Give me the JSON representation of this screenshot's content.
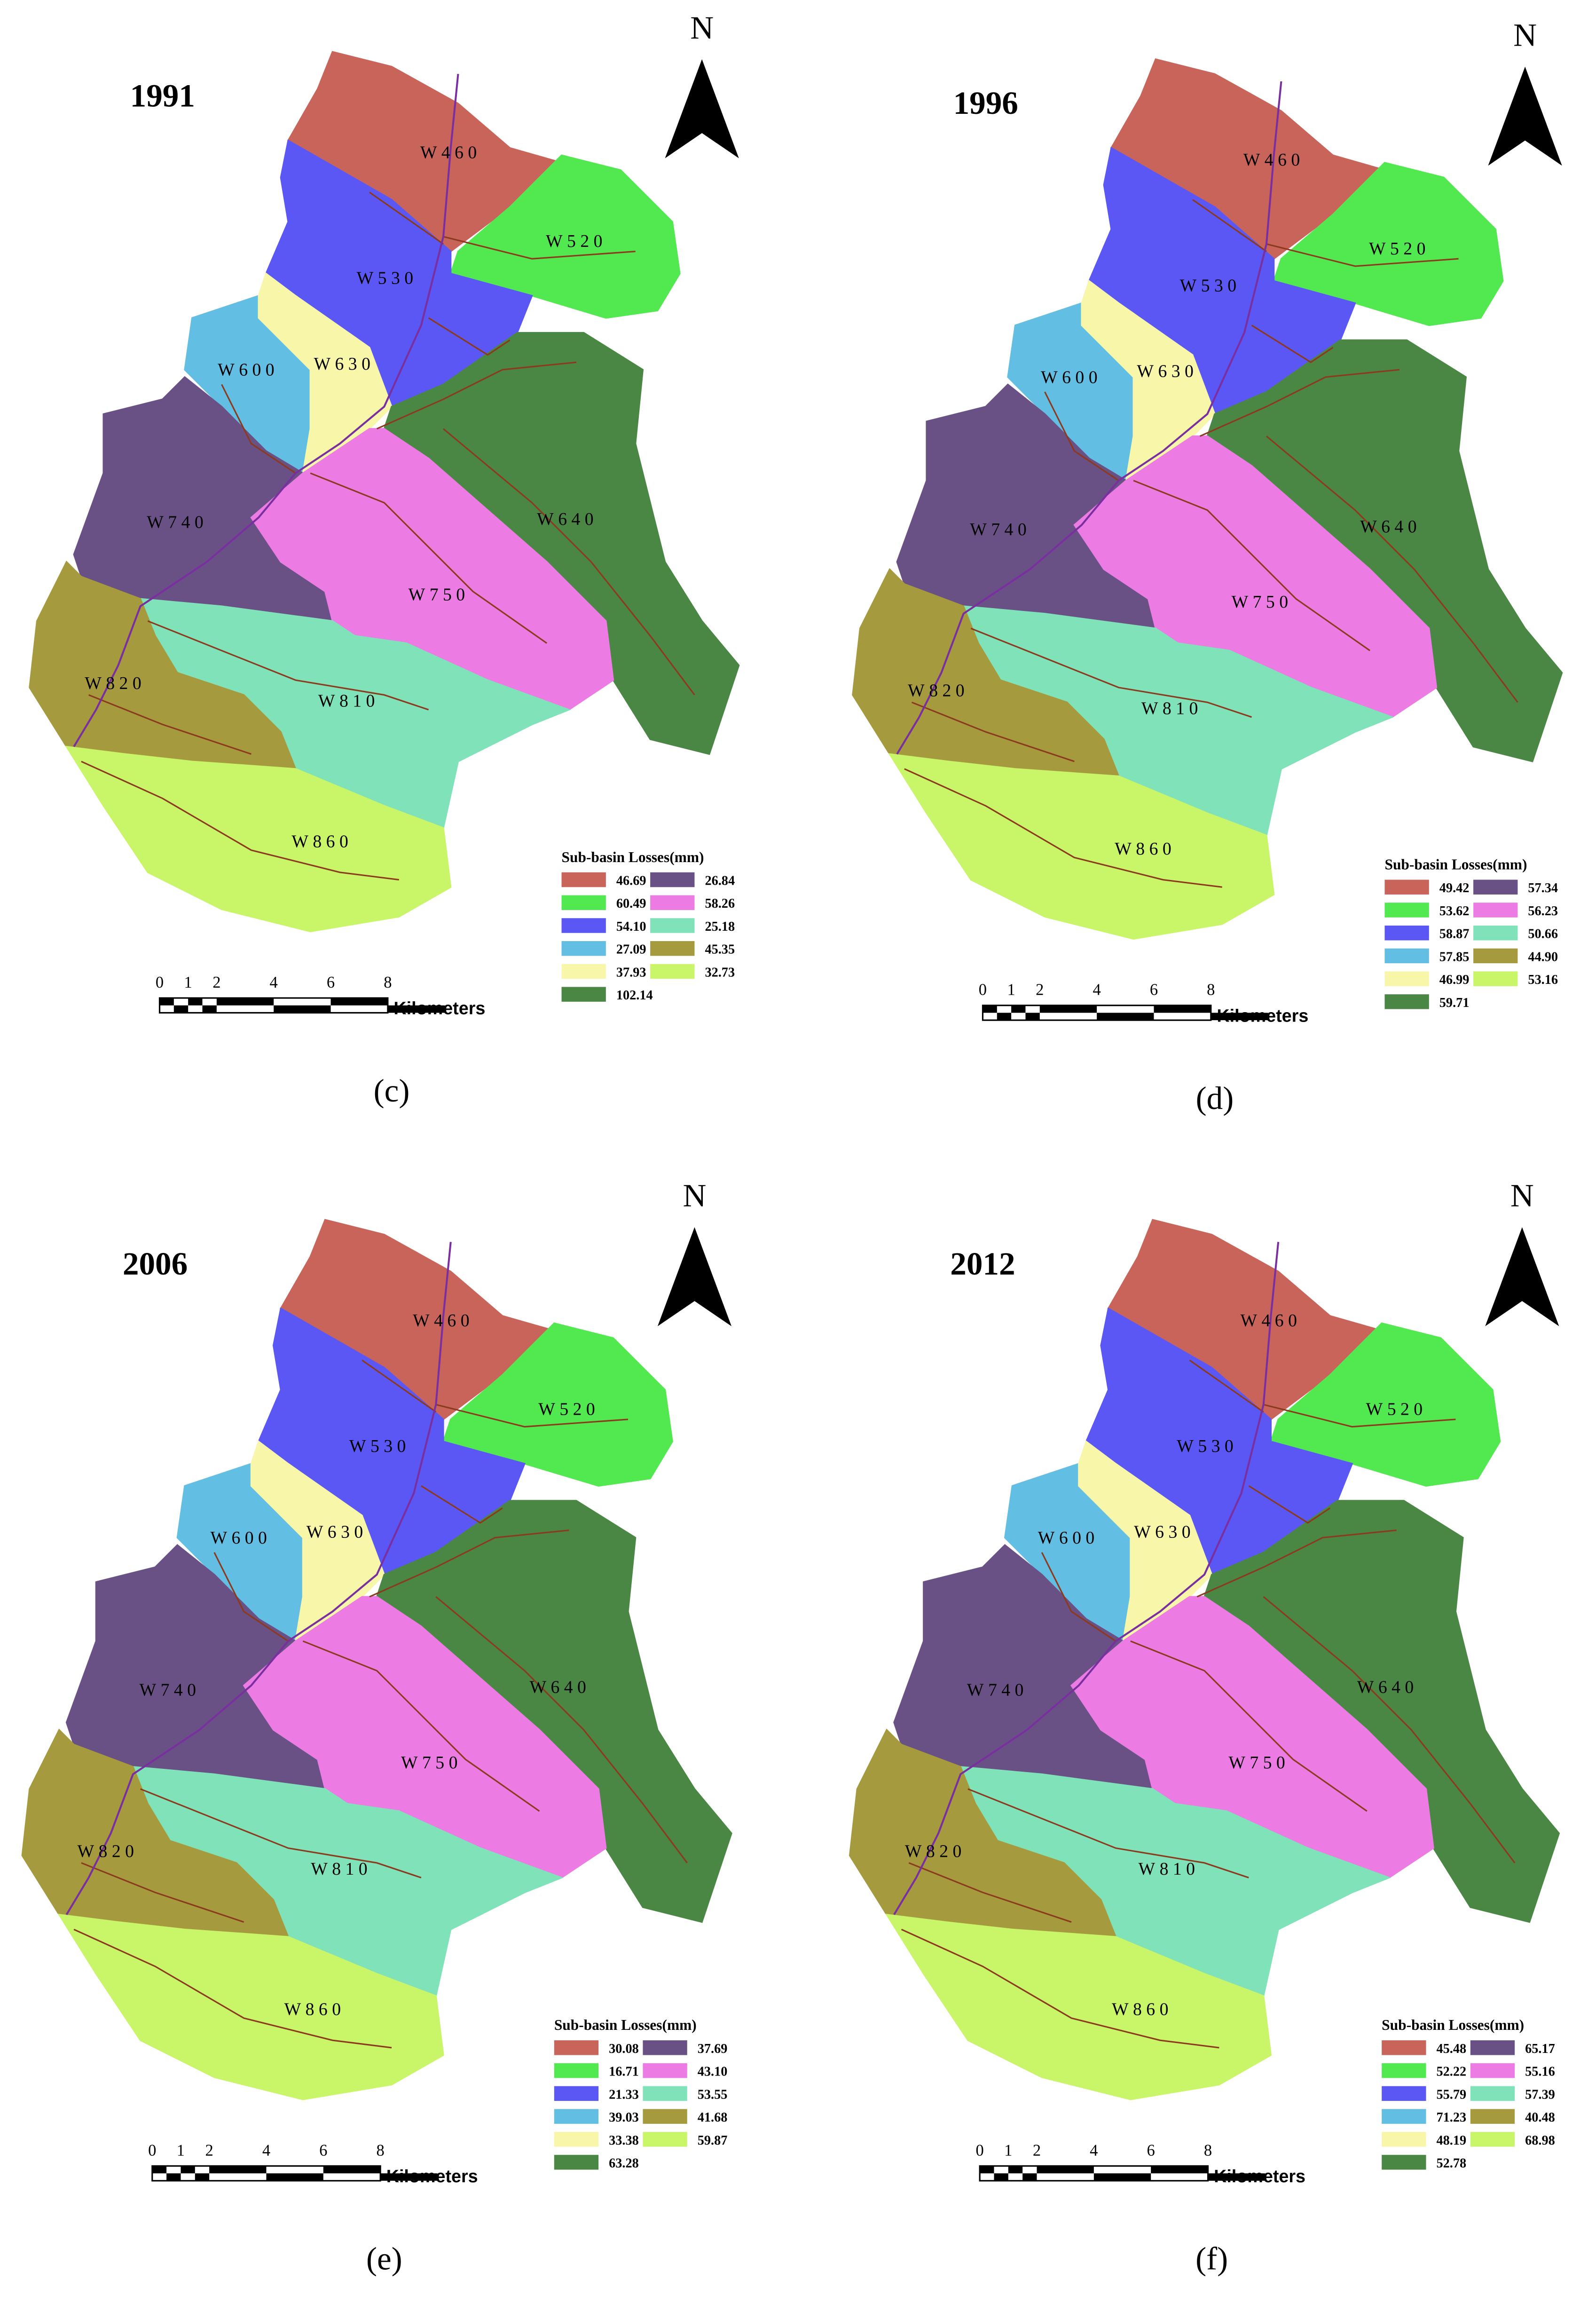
{
  "north_label": "N",
  "scale_bar": {
    "ticks": [
      "0",
      "1",
      "2",
      "4",
      "6",
      "8"
    ],
    "unit": "Kilometers"
  },
  "basins": [
    {
      "name": "W460",
      "color": "#c8645a"
    },
    {
      "name": "W520",
      "color": "#52e84f"
    },
    {
      "name": "W530",
      "color": "#5b57f5"
    },
    {
      "name": "W600",
      "color": "#62bfe3"
    },
    {
      "name": "W630",
      "color": "#f8f6a8"
    },
    {
      "name": "W640",
      "color": "#4b8744"
    },
    {
      "name": "W740",
      "color": "#6a5185"
    },
    {
      "name": "W750",
      "color": "#ec7ce4"
    },
    {
      "name": "W810",
      "color": "#80e2b8"
    },
    {
      "name": "W820",
      "color": "#a69a3e"
    },
    {
      "name": "W860",
      "color": "#c9f569"
    }
  ],
  "panels": [
    {
      "label": "(c)",
      "year": "1991",
      "legend_title": "Sub-basin Losses(mm)",
      "losses": [
        "46.69",
        "60.49",
        "54.10",
        "27.09",
        "37.93",
        "102.14",
        "26.84",
        "58.26",
        "25.18",
        "45.35",
        "32.73"
      ]
    },
    {
      "label": "(d)",
      "year": "1996",
      "legend_title": "Sub-basin Losses(mm)",
      "losses": [
        "49.42",
        "53.62",
        "58.87",
        "57.85",
        "46.99",
        "59.71",
        "57.34",
        "56.23",
        "50.66",
        "44.90",
        "53.16"
      ]
    },
    {
      "label": "(e)",
      "year": "2006",
      "legend_title": "Sub-basin Losses(mm)",
      "losses": [
        "30.08",
        "16.71",
        "21.33",
        "39.03",
        "33.38",
        "63.28",
        "37.69",
        "43.10",
        "53.55",
        "41.68",
        "59.87"
      ]
    },
    {
      "label": "(f)",
      "year": "2012",
      "legend_title": "Sub-basin Losses(mm)",
      "losses": [
        "45.48",
        "52.22",
        "55.79",
        "71.23",
        "48.19",
        "52.78",
        "65.17",
        "55.16",
        "57.39",
        "40.48",
        "68.98"
      ]
    }
  ]
}
